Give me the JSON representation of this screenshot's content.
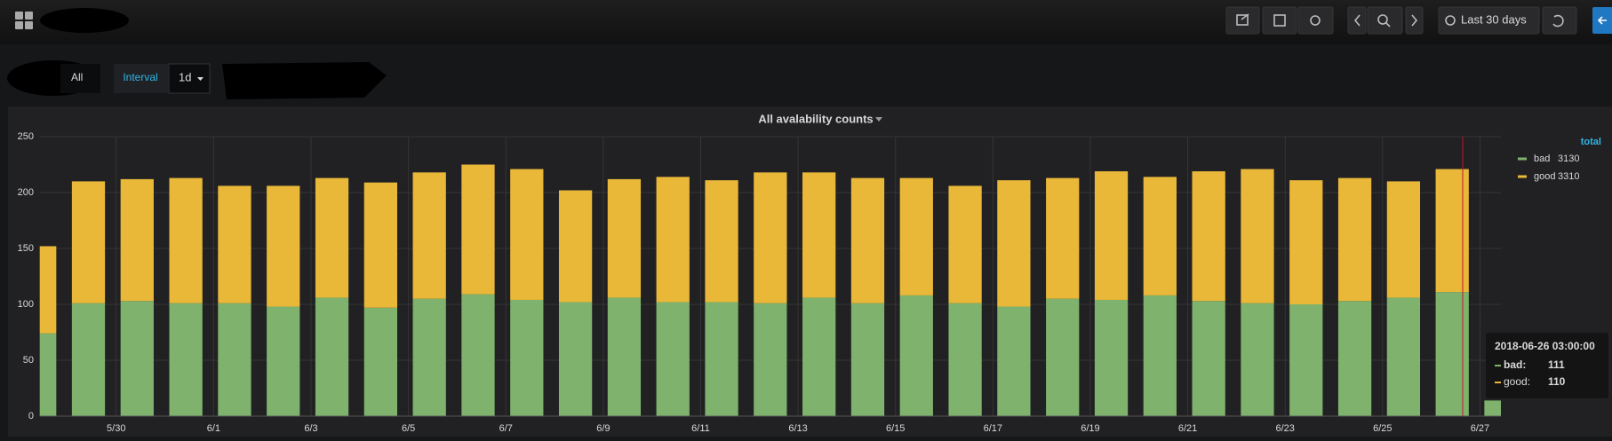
{
  "toolbar": {
    "time_range": "Last 30 days"
  },
  "variables": {
    "first_value": "All",
    "interval_label": "Interval",
    "interval_value": "1d"
  },
  "chart_data": {
    "type": "bar",
    "stacked": true,
    "title": "All avalability counts",
    "categories": [
      null,
      null,
      "5/30",
      null,
      "6/1",
      null,
      "6/3",
      null,
      "6/5",
      null,
      "6/7",
      null,
      "6/9",
      null,
      "6/11",
      null,
      "6/13",
      null,
      "6/15",
      null,
      "6/17",
      null,
      "6/19",
      null,
      "6/21",
      null,
      "6/23",
      null,
      "6/25",
      null,
      "6/27"
    ],
    "series": [
      {
        "name": "bad",
        "color": "#7eb26d",
        "total": 3130,
        "values": [
          74,
          101,
          103,
          101,
          101,
          98,
          106,
          97,
          105,
          109,
          104,
          102,
          106,
          102,
          102,
          101,
          106,
          101,
          108,
          101,
          98,
          105,
          104,
          108,
          103,
          101,
          100,
          103,
          106,
          111,
          14
        ]
      },
      {
        "name": "good",
        "color": "#eab839",
        "total": 3310,
        "values": [
          78,
          109,
          109,
          112,
          105,
          108,
          107,
          112,
          113,
          116,
          117,
          100,
          106,
          112,
          109,
          117,
          112,
          112,
          105,
          105,
          113,
          108,
          115,
          106,
          116,
          120,
          111,
          110,
          104,
          110,
          null
        ]
      }
    ],
    "ylim": [
      0,
      250
    ],
    "yticks": [
      0,
      50,
      100,
      150,
      200,
      250
    ],
    "grid": true,
    "legend_header": "total"
  },
  "tooltip": {
    "time": "2018-06-26 03:00:00",
    "labels": [
      "bad:",
      "good:"
    ]
  }
}
